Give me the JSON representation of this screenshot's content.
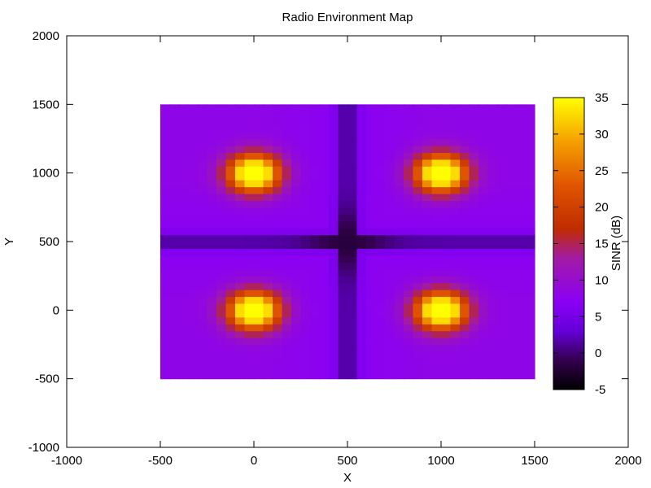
{
  "chart_data": {
    "type": "heatmap",
    "title": "Radio Environment Map",
    "xlabel": "X",
    "ylabel": "Y",
    "colorbar_label": "SINR (dB)",
    "xlim": [
      -1000,
      2000
    ],
    "ylim": [
      -1000,
      2000
    ],
    "x_ticks": [
      -1000,
      -500,
      0,
      500,
      1000,
      1500,
      2000
    ],
    "y_ticks": [
      -1000,
      -500,
      0,
      500,
      1000,
      1500,
      2000
    ],
    "data_extent": {
      "x": [
        -500,
        1500
      ],
      "y": [
        -500,
        1500
      ]
    },
    "grid_step": 50,
    "color_range": [
      -5,
      35
    ],
    "colorbar_ticks": [
      -5,
      0,
      5,
      10,
      15,
      20,
      25,
      30,
      35
    ],
    "colormap": "black-purple-red-orange-yellow",
    "grid": false,
    "transmitters": [
      {
        "x": 0,
        "y": 0
      },
      {
        "x": 1000,
        "y": 0
      },
      {
        "x": 0,
        "y": 1000
      },
      {
        "x": 1000,
        "y": 1000
      }
    ],
    "approx_values": {
      "peak_sinr": 34,
      "background_sinr": 7,
      "center_min_sinr": -4
    }
  }
}
